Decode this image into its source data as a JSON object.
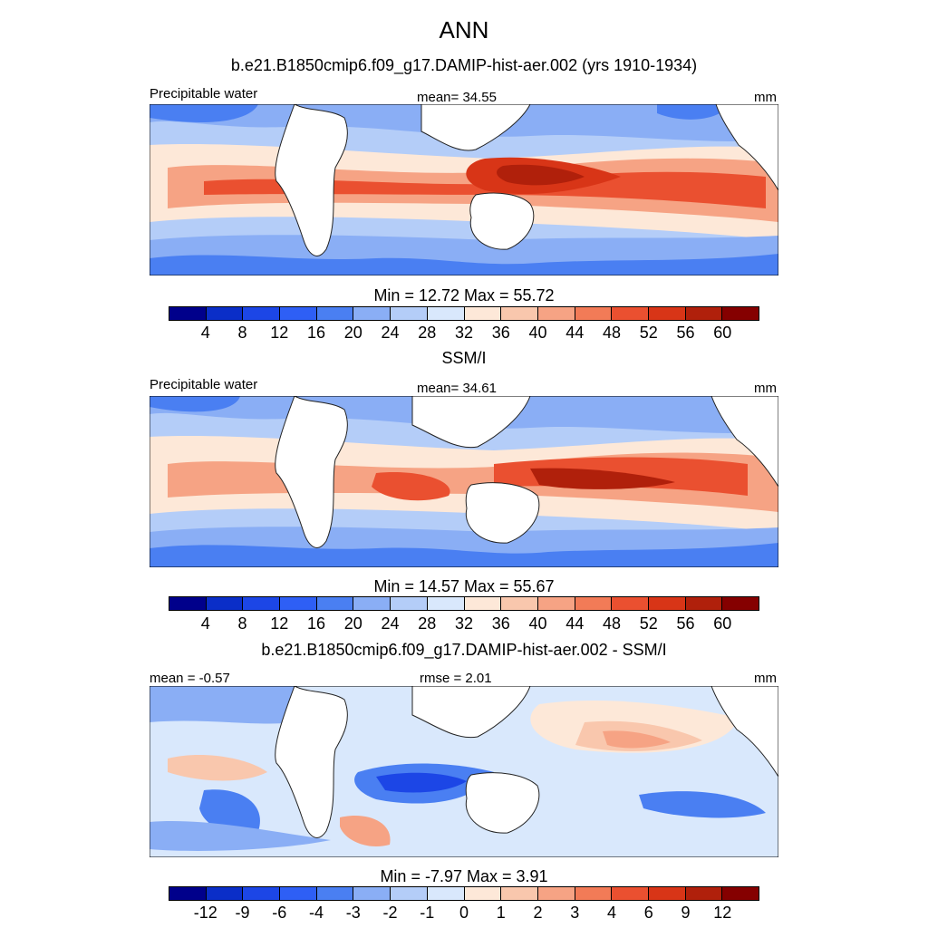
{
  "title": "ANN",
  "panels": [
    {
      "title": "b.e21.B1850cmip6.f09_g17.DAMIP-hist-aer.002 (yrs 1910-1934)",
      "left_label": "Precipitable water",
      "center_label": "mean=  34.55",
      "right_label": "mm",
      "minmax": "Min =  12.72 Max =  55.72",
      "ticks": [
        "4",
        "8",
        "12",
        "16",
        "20",
        "24",
        "28",
        "32",
        "36",
        "40",
        "44",
        "48",
        "52",
        "56",
        "60"
      ],
      "colors": [
        "#00008b",
        "#0a2ec8",
        "#1c46e6",
        "#2e5ff5",
        "#4a7ff2",
        "#8aaef5",
        "#b4cdf8",
        "#d9e8fc",
        "#fde8d8",
        "#f9c7ad",
        "#f6a384",
        "#f27b57",
        "#ea5030",
        "#d83517",
        "#b0200b",
        "#850000"
      ]
    },
    {
      "title": "SSM/I",
      "left_label": "Precipitable water",
      "center_label": "mean=  34.61",
      "right_label": "mm",
      "minmax": "Min =  14.57 Max =  55.67",
      "ticks": [
        "4",
        "8",
        "12",
        "16",
        "20",
        "24",
        "28",
        "32",
        "36",
        "40",
        "44",
        "48",
        "52",
        "56",
        "60"
      ],
      "colors": [
        "#00008b",
        "#0a2ec8",
        "#1c46e6",
        "#2e5ff5",
        "#4a7ff2",
        "#8aaef5",
        "#b4cdf8",
        "#d9e8fc",
        "#fde8d8",
        "#f9c7ad",
        "#f6a384",
        "#f27b57",
        "#ea5030",
        "#d83517",
        "#b0200b",
        "#850000"
      ]
    },
    {
      "title": "b.e21.B1850cmip6.f09_g17.DAMIP-hist-aer.002 - SSM/I",
      "left_label": "mean =  -0.57",
      "center_label": "rmse =   2.01",
      "right_label": "mm",
      "minmax": "Min =  -7.97 Max =   3.91",
      "ticks": [
        "-12",
        "-9",
        "-6",
        "-4",
        "-3",
        "-2",
        "-1",
        "0",
        "1",
        "2",
        "3",
        "4",
        "6",
        "9",
        "12"
      ],
      "colors": [
        "#00008b",
        "#0a2ec8",
        "#1c46e6",
        "#2e5ff5",
        "#4a7ff2",
        "#8aaef5",
        "#b4cdf8",
        "#d9e8fc",
        "#fde8d8",
        "#f9c7ad",
        "#f6a384",
        "#f27b57",
        "#ea5030",
        "#d83517",
        "#b0200b",
        "#850000"
      ]
    }
  ]
}
